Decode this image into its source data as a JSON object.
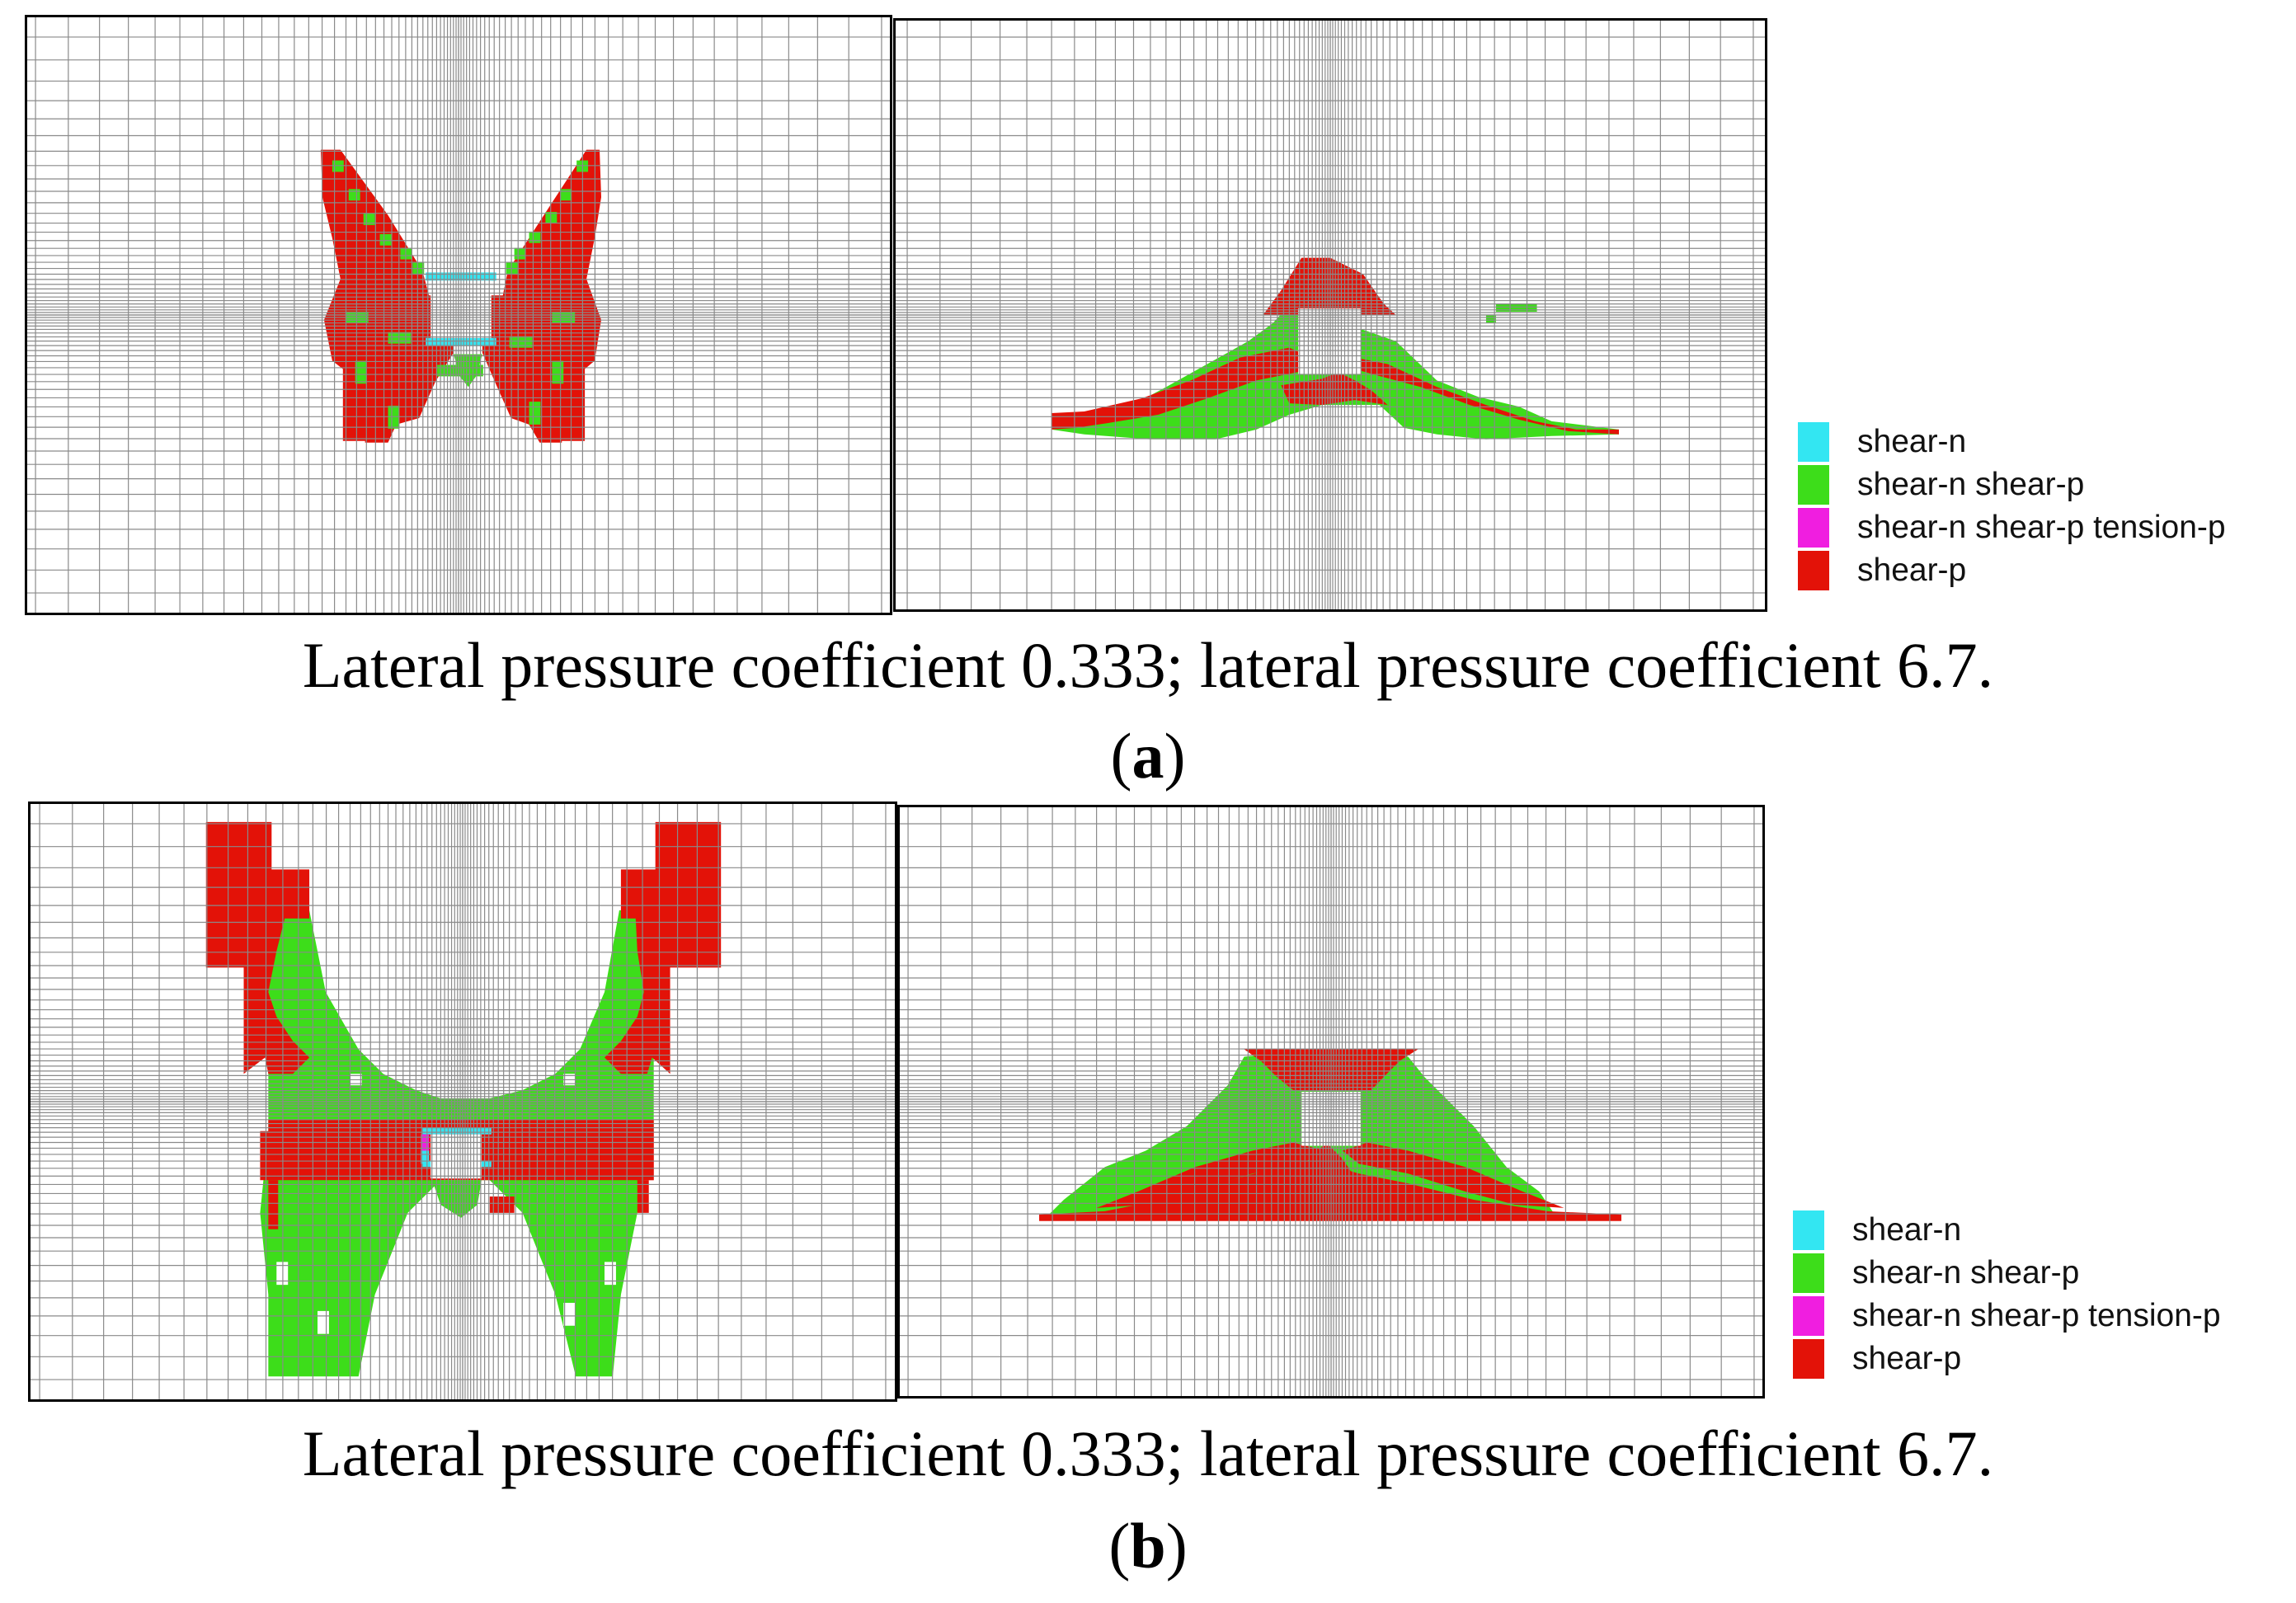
{
  "colors": {
    "shear_n": "#33e6f2",
    "shear_n_shear_p": "#3ddd1a",
    "shear_n_shear_p_tension_p": "#f01ee0",
    "shear_p": "#e31208",
    "grid": "#8a8a8a",
    "border": "#000000"
  },
  "legend": {
    "items": [
      {
        "label": "shear-n",
        "color": "#33e6f2"
      },
      {
        "label": "shear-n shear-p",
        "color": "#3ddd1a"
      },
      {
        "label": "shear-n shear-p tension-p",
        "color": "#f01ee0"
      },
      {
        "label": "shear-p",
        "color": "#e31208"
      }
    ]
  },
  "figure_a": {
    "caption": "Lateral pressure coefficient 0.333; lateral pressure coefficient 6.7.",
    "tag": "a"
  },
  "figure_b": {
    "caption": "Lateral pressure coefficient 0.333; lateral pressure coefficient 6.7.",
    "tag": "b"
  }
}
